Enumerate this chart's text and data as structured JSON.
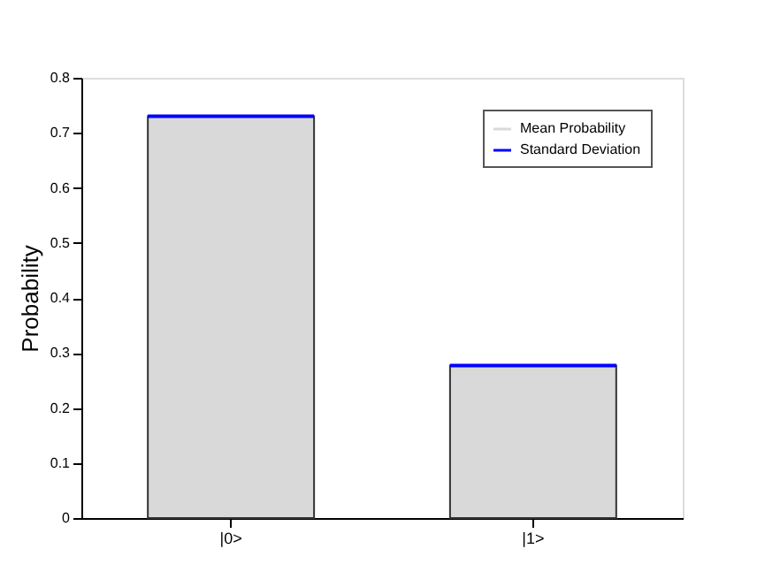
{
  "chart_data": {
    "type": "bar",
    "ylabel": "Probability",
    "categories": [
      "|0>",
      "|1>"
    ],
    "series": [
      {
        "name": "Mean Probability",
        "color": "#d9d9d9",
        "values": [
          0.73,
          0.277
        ]
      },
      {
        "name": "Standard Deviation",
        "color": "#0000ff",
        "values": [
          null,
          null
        ]
      }
    ],
    "ylim": [
      0,
      0.8
    ],
    "yticks": [
      0,
      0.1,
      0.2,
      0.3,
      0.4,
      0.5,
      0.6,
      0.7,
      0.8
    ],
    "grid": false,
    "legend": "top right"
  }
}
